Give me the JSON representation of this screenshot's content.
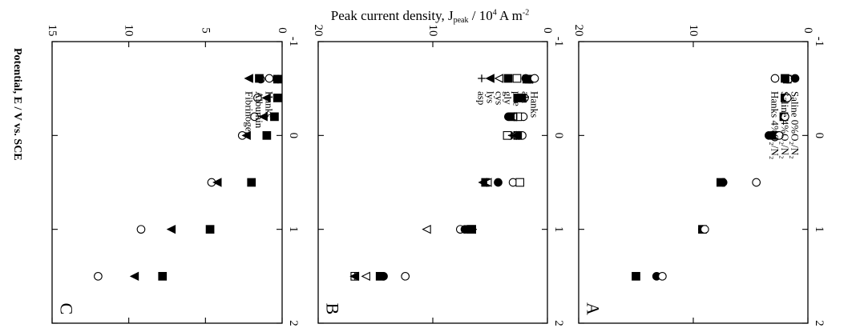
{
  "figure": {
    "shared_title": "Peak current density, J",
    "shared_title_sub": "peak",
    "shared_title_tail": " / 10",
    "shared_title_exp": "4",
    "shared_title_unit": " A m",
    "shared_title_unit_exp": "-2",
    "shared_xlabel": "Potential, E / V vs. SCE"
  },
  "chart_data": [
    {
      "type": "scatter",
      "panel": "A",
      "xlabel": "Potential, E / V vs. SCE",
      "ylabel": "Peak current density, J_peak / 10^4 A m^-2",
      "xlim": [
        -1,
        2
      ],
      "ylim": [
        0,
        20
      ],
      "x_ticks": [
        "-1",
        "0",
        "1",
        "2"
      ],
      "y_ticks": [
        "0",
        "10",
        "20"
      ],
      "legend_position": "top-right",
      "series": [
        {
          "name": "Saline 0%O2/N2",
          "legend": "Saline 0%O₂/N₂",
          "marker": "filled-circle",
          "x": [
            -0.6,
            -0.4,
            -0.2,
            0.0,
            0.5,
            1.0,
            1.5
          ],
          "y": [
            1.8,
            2.0,
            2.1,
            3.4,
            7.4,
            9.2,
            13.2
          ]
        },
        {
          "name": "Saline 4%O2/N2",
          "legend": "Saline 4%O₂/N₂",
          "marker": "filled-square",
          "x": [
            -0.6,
            -0.4,
            -0.2,
            0.0,
            0.5,
            1.0,
            1.5
          ],
          "y": [
            1.8,
            2.0,
            2.1,
            2.9,
            7.6,
            9.2,
            15.0
          ]
        },
        {
          "name": "Hanks 4%O2/N2",
          "legend": "Hanks 4%O₂/N₂",
          "marker": "open-circle",
          "x": [
            -0.6,
            -0.4,
            -0.2,
            0.0,
            0.5,
            1.0,
            1.5
          ],
          "y": [
            1.7,
            1.8,
            2.0,
            2.5,
            4.5,
            9.0,
            12.7
          ]
        }
      ]
    },
    {
      "type": "scatter",
      "panel": "B",
      "xlabel": "Potential, E / V vs. SCE",
      "ylabel": "Peak current density, J_peak / 10^4 A m^-2",
      "xlim": [
        -1,
        2
      ],
      "ylim": [
        0,
        20
      ],
      "x_ticks": [
        "-1",
        "0",
        "1",
        "2"
      ],
      "y_ticks": [
        "0",
        "10",
        "20"
      ],
      "legend_position": "top-right",
      "series": [
        {
          "name": "Hanks",
          "legend": "Hanks",
          "marker": "open-circle",
          "x": [
            -0.6,
            -0.4,
            -0.2,
            0.0,
            0.5,
            1.0,
            1.5
          ],
          "y": [
            1.5,
            2.0,
            2.1,
            2.2,
            3.0,
            7.6,
            12.4
          ]
        },
        {
          "name": "ala",
          "legend": "ala",
          "marker": "filled-circle",
          "x": [
            -0.6,
            -0.4,
            -0.2,
            0.0,
            0.5,
            1.0,
            1.5
          ],
          "y": [
            1.6,
            2.6,
            3.4,
            3.3,
            4.3,
            7.2,
            14.3
          ]
        },
        {
          "name": "phe",
          "legend": "phe",
          "marker": "open-square",
          "x": [
            -0.6,
            -0.4,
            -0.2,
            0.0,
            0.5,
            1.0,
            1.5
          ],
          "y": [
            1.6,
            2.4,
            2.6,
            3.5,
            2.4,
            6.6,
            16.8
          ]
        },
        {
          "name": "gly",
          "legend": "gly",
          "marker": "filled-square",
          "x": [
            -0.6,
            -0.4,
            -0.2,
            0.0,
            0.5,
            1.0,
            1.5
          ],
          "y": [
            1.8,
            2.6,
            3.0,
            2.6,
            5.4,
            6.7,
            14.6
          ]
        },
        {
          "name": "cys",
          "legend": "cys",
          "marker": "open-triangle",
          "x": [
            -0.6,
            -0.4,
            -0.2,
            0.0,
            0.5,
            1.0,
            1.5
          ],
          "y": [
            1.6,
            2.2,
            3.0,
            3.0,
            5.2,
            10.5,
            15.8
          ]
        },
        {
          "name": "lys",
          "legend": "lys",
          "marker": "filled-triangle",
          "x": [
            -0.6,
            -0.4,
            -0.2,
            0.0,
            0.5,
            1.0,
            1.5
          ],
          "y": [
            1.6,
            2.2,
            3.2,
            2.8,
            5.6,
            6.6,
            16.8
          ]
        },
        {
          "name": "asp",
          "legend": "asp",
          "marker": "plus",
          "x": [
            -0.6,
            -0.4,
            -0.2,
            0.0,
            0.5,
            1.0,
            1.5
          ],
          "y": [
            1.6,
            2.2,
            3.2,
            3.1,
            5.6,
            6.5,
            16.8
          ]
        }
      ]
    },
    {
      "type": "scatter",
      "panel": "C",
      "xlabel": "Potential, E / V vs. SCE",
      "ylabel": "Peak current density, J_peak / 10^4 A m^-2",
      "xlim": [
        -1,
        2
      ],
      "ylim": [
        0,
        15
      ],
      "x_ticks": [
        "-1",
        "0",
        "1",
        "2"
      ],
      "y_ticks": [
        "0",
        "5",
        "10",
        "15"
      ],
      "legend_position": "top-right",
      "series": [
        {
          "name": "Hanks",
          "legend": "Hanks",
          "marker": "open-circle",
          "x": [
            -0.6,
            -0.4,
            -0.2,
            0.0,
            0.5,
            1.0,
            1.5
          ],
          "y": [
            1.4,
            1.6,
            1.8,
            2.6,
            4.6,
            9.2,
            12.0
          ]
        },
        {
          "name": "Albumin",
          "legend": "Albumin",
          "marker": "filled-square",
          "x": [
            -0.6,
            -0.4,
            -0.2,
            0.0,
            0.5,
            1.0,
            1.5
          ],
          "y": [
            0.3,
            0.3,
            0.5,
            1.0,
            2.0,
            4.7,
            7.8
          ]
        },
        {
          "name": "Fibrinogen",
          "legend": "Fibrinogen",
          "marker": "filled-triangle",
          "x": [
            -0.6,
            -0.4,
            -0.2,
            0.0,
            0.5,
            1.0,
            1.5
          ],
          "y": [
            0.5,
            1.0,
            1.2,
            2.3,
            4.2,
            7.2,
            9.6
          ]
        }
      ]
    }
  ]
}
